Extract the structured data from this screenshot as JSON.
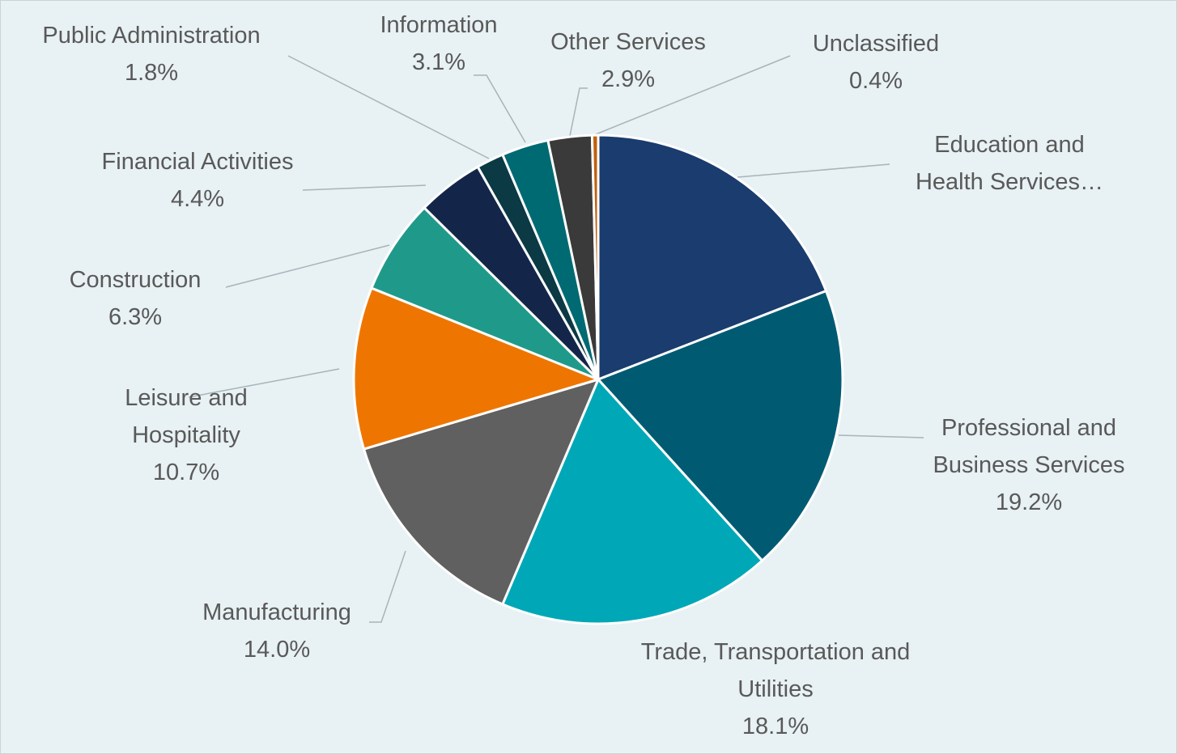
{
  "chart_data": {
    "type": "pie",
    "categories": [
      "Education and Health Services…",
      "Professional and Business Services",
      "Trade, Transportation and Utilities",
      "Manufacturing",
      "Leisure and Hospitality",
      "Construction",
      "Financial Activities",
      "Public Administration",
      "Information",
      "Other Services",
      "Unclassified"
    ],
    "values": [
      19.1,
      19.2,
      18.1,
      14.0,
      10.7,
      6.3,
      4.4,
      1.8,
      3.1,
      2.9,
      0.4
    ],
    "value_labels": [
      null,
      "19.2%",
      "18.1%",
      "14.0%",
      "10.7%",
      "6.3%",
      "4.4%",
      "1.8%",
      "3.1%",
      "2.9%",
      "0.4%"
    ],
    "colors": [
      "#1a3c6e",
      "#005b72",
      "#00a8b7",
      "#606060",
      "#ee7600",
      "#1f9a8a",
      "#13264a",
      "#0b3944",
      "#006a72",
      "#3a3a3a",
      "#c0600f"
    ]
  }
}
